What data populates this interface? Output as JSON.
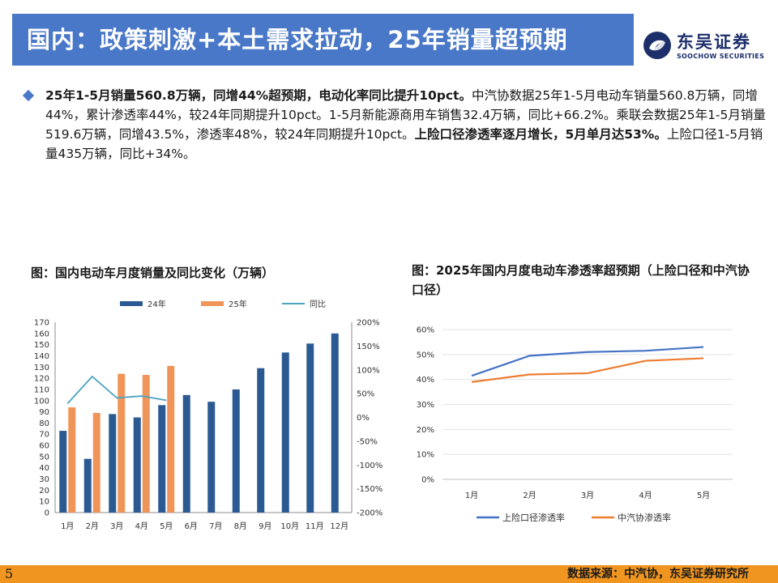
{
  "header": {
    "title": "国内：政策刺激+本土需求拉动，25年销量超预期",
    "logo_cn": "东吴证券",
    "logo_en": "SOOCHOW SECURITIES"
  },
  "summary": {
    "lead_bold": "25年1-5月销量560.8万辆，同增44%超预期，电动化率同比提升10pct。",
    "part1": "中汽协数据25年1-5月电动车销量560.8万辆，同增44%，累计渗透率44%，较24年同期提升10pct。1-5月新能源商用车销售32.4万辆，同比+66.2%。乘联会数据25年1-5月销量519.6万辆，同增43.5%，渗透率48%，较24年同期提升10pct。",
    "mid_bold": "上险口径渗透率逐月增长，5月单月达53%。",
    "part2": "上险口径1-5月销量435万辆，同比+34%。"
  },
  "charts": {
    "left_title": "图：国内电动车月度销量及同比变化（万辆）",
    "right_title": "图：2025年国内月度电动车渗透率超预期（上险口径和中汽协口径）"
  },
  "chart_data": [
    {
      "type": "bar",
      "categories": [
        "1月",
        "2月",
        "3月",
        "4月",
        "5月",
        "6月",
        "7月",
        "8月",
        "9月",
        "10月",
        "11月",
        "12月"
      ],
      "series": [
        {
          "name": "24年",
          "type": "bar",
          "axis": "left",
          "color": "#2b5a92",
          "values": [
            73,
            48,
            88,
            85,
            96,
            105,
            99,
            110,
            129,
            143,
            151,
            160
          ]
        },
        {
          "name": "25年",
          "type": "bar",
          "axis": "left",
          "color": "#f0955a",
          "values": [
            94,
            89,
            124,
            123,
            131,
            null,
            null,
            null,
            null,
            null,
            null,
            null
          ]
        },
        {
          "name": "同比",
          "type": "line",
          "axis": "right",
          "color": "#4ba3c3",
          "values": [
            29,
            86,
            41,
            45,
            36,
            null,
            null,
            null,
            null,
            null,
            null,
            null
          ]
        }
      ],
      "ylim": [
        0,
        170
      ],
      "yticks": [
        0,
        10,
        20,
        30,
        40,
        50,
        60,
        70,
        80,
        90,
        100,
        110,
        120,
        130,
        140,
        150,
        160,
        170
      ],
      "y2lim": [
        -200,
        200
      ],
      "y2ticks": [
        "-200%",
        "-150%",
        "-100%",
        "-50%",
        "0%",
        "50%",
        "100%",
        "150%",
        "200%"
      ],
      "legend": "top"
    },
    {
      "type": "line",
      "categories": [
        "1月",
        "2月",
        "3月",
        "4月",
        "5月"
      ],
      "series": [
        {
          "name": "上险口径渗透率",
          "color": "#4472c4",
          "values": [
            41.5,
            49.5,
            51,
            51.5,
            53
          ]
        },
        {
          "name": "中汽协渗透率",
          "color": "#ed7d31",
          "values": [
            39,
            42,
            42.5,
            47.5,
            48.5
          ]
        }
      ],
      "ylim": [
        0,
        60
      ],
      "yticks": [
        "0%",
        "10%",
        "20%",
        "30%",
        "40%",
        "50%",
        "60%"
      ],
      "grid": true,
      "legend": "bottom"
    }
  ],
  "footer": {
    "page_number": "5",
    "source": "数据来源：中汽协，东吴证券研究所"
  },
  "colors": {
    "title_bar": "#4a78c8",
    "footer_bar": "#f0951f",
    "logo": "#1d2f6b"
  }
}
